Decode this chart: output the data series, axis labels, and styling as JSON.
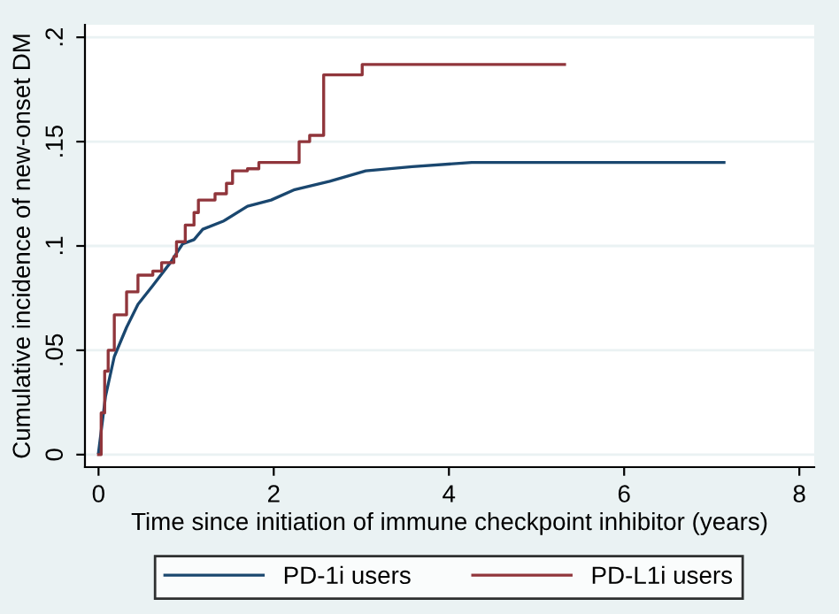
{
  "chart_data": {
    "type": "line",
    "xlabel": "Time since initiation of immune checkpoint inhibitor (years)",
    "ylabel": "Cumulative incidence of new-onset DM",
    "xlim": [
      -0.155,
      8.17
    ],
    "xticks": [
      0,
      2,
      4,
      6,
      8
    ],
    "ylim": [
      -0.006,
      0.206
    ],
    "yticks": [
      {
        "value": 0,
        "label": "0"
      },
      {
        "value": 0.05,
        "label": ".05"
      },
      {
        "value": 0.1,
        "label": ".1"
      },
      {
        "value": 0.15,
        "label": ".15"
      },
      {
        "value": 0.2,
        "label": ".2"
      }
    ],
    "grid": "y",
    "legend": "bottom",
    "series": [
      {
        "name": "PD-1i users",
        "color": "#1a476f",
        "x": [
          0,
          0.08,
          0.18,
          0.32,
          0.45,
          0.62,
          0.82,
          0.96,
          1.09,
          1.19,
          1.43,
          1.7,
          1.97,
          2.24,
          2.64,
          3.05,
          3.58,
          4.26,
          7.14
        ],
        "values": [
          0.001,
          0.028,
          0.047,
          0.061,
          0.072,
          0.081,
          0.092,
          0.101,
          0.103,
          0.108,
          0.112,
          0.119,
          0.122,
          0.127,
          0.131,
          0.136,
          0.138,
          0.14,
          0.14
        ]
      },
      {
        "name": "PD-L1i users",
        "color": "#90353b",
        "type": "step",
        "x": [
          0,
          0.03,
          0.07,
          0.11,
          0.18,
          0.32,
          0.45,
          0.62,
          0.72,
          0.86,
          0.89,
          0.99,
          1.09,
          1.14,
          1.33,
          1.46,
          1.53,
          1.7,
          1.83,
          2.29,
          2.41,
          2.57,
          3.01,
          5.32
        ],
        "values": [
          0,
          0.02,
          0.04,
          0.05,
          0.067,
          0.078,
          0.086,
          0.088,
          0.092,
          0.095,
          0.102,
          0.11,
          0.116,
          0.122,
          0.125,
          0.13,
          0.136,
          0.137,
          0.14,
          0.15,
          0.153,
          0.182,
          0.187,
          0.187
        ]
      }
    ]
  }
}
